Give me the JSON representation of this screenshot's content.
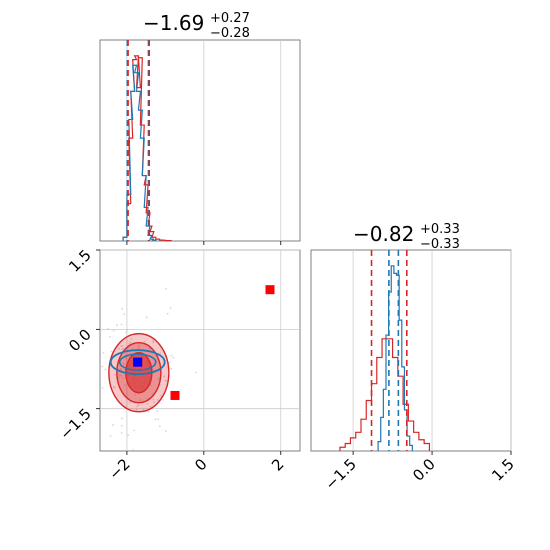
{
  "colors": {
    "red": "#d62728",
    "blue": "#1f77b4",
    "marker_blue": "#0000ff",
    "marker_red": "#ff0000",
    "grid": "#cccccc",
    "axis": "#808080"
  },
  "chart_data": {
    "type": "corner",
    "parameters": [
      {
        "title_value": "−1.69",
        "title_plus": "+0.27",
        "title_minus": "−0.28",
        "range": [
          -2.7,
          2.5
        ],
        "quantile_lines_red": [
          -1.97,
          -1.42
        ],
        "quantile_lines_blue": [
          -1.99,
          -1.44
        ],
        "hist_red": {
          "x": [
            -2.05,
            -1.95,
            -1.9,
            -1.85,
            -1.8,
            -1.75,
            -1.7,
            -1.65,
            -1.6,
            -1.55,
            -1.5,
            -1.45,
            -1.4,
            -1.35,
            -1.3,
            -1.2,
            -1.1,
            -0.9
          ],
          "y": [
            0.02,
            0.2,
            0.55,
            0.8,
            0.97,
            0.99,
            0.82,
            0.98,
            0.62,
            0.35,
            0.3,
            0.15,
            0.08,
            0.05,
            0.02,
            0.01,
            0.005,
            0.002
          ]
        },
        "hist_blue": {
          "x": [
            -2.05,
            -1.95,
            -1.9,
            -1.85,
            -1.8,
            -1.75,
            -1.7,
            -1.65,
            -1.6,
            -1.55,
            -1.5,
            -1.45,
            -1.4,
            -1.35,
            -1.3
          ],
          "y": [
            0.02,
            0.25,
            0.65,
            0.8,
            0.94,
            0.9,
            0.8,
            0.7,
            0.55,
            0.35,
            0.18,
            0.08,
            0.03,
            0.01,
            0.005
          ]
        }
      },
      {
        "title_value": "−0.82",
        "title_plus": "+0.33",
        "title_minus": "−0.33",
        "range": [
          -2.3,
          1.5
        ],
        "quantile_lines_red": [
          -1.15,
          -0.48
        ],
        "quantile_lines_blue": [
          -0.82,
          -0.64
        ],
        "hist_red": {
          "x": [
            -1.7,
            -1.6,
            -1.5,
            -1.4,
            -1.3,
            -1.2,
            -1.1,
            -1.0,
            -0.9,
            -0.8,
            -0.7,
            -0.6,
            -0.5,
            -0.4,
            -0.3,
            -0.2,
            -0.1
          ],
          "y": [
            0.02,
            0.04,
            0.07,
            0.1,
            0.17,
            0.27,
            0.36,
            0.5,
            0.6,
            0.6,
            0.5,
            0.4,
            0.25,
            0.16,
            0.1,
            0.06,
            0.04
          ]
        },
        "hist_blue": {
          "x": [
            -1.0,
            -0.95,
            -0.9,
            -0.85,
            -0.8,
            -0.75,
            -0.7,
            -0.65,
            -0.6,
            -0.55,
            -0.5,
            -0.45,
            -0.4
          ],
          "y": [
            0.05,
            0.18,
            0.33,
            0.62,
            0.85,
            0.99,
            0.95,
            0.94,
            0.7,
            0.45,
            0.22,
            0.08,
            0.03
          ]
        }
      }
    ],
    "ticks_param1": [
      "−2",
      "0",
      "2"
    ],
    "ticks_param2": [
      "−1.5",
      "0.0",
      "1.5"
    ],
    "ticks_param1_values": [
      -2,
      0,
      2
    ],
    "ticks_param2_values": [
      -1.5,
      0.0,
      1.5
    ],
    "scatter_2d": {
      "contour_center_red": [
        -1.69,
        -0.82
      ],
      "contour_center_blue": [
        -1.72,
        -0.62
      ],
      "markers_red": [
        [
          -1.72,
          -0.62
        ],
        [
          -0.75,
          -1.25
        ],
        [
          1.72,
          0.75
        ]
      ],
      "markers_blue": [
        [
          -1.72,
          -0.62
        ]
      ]
    },
    "grid": true
  }
}
